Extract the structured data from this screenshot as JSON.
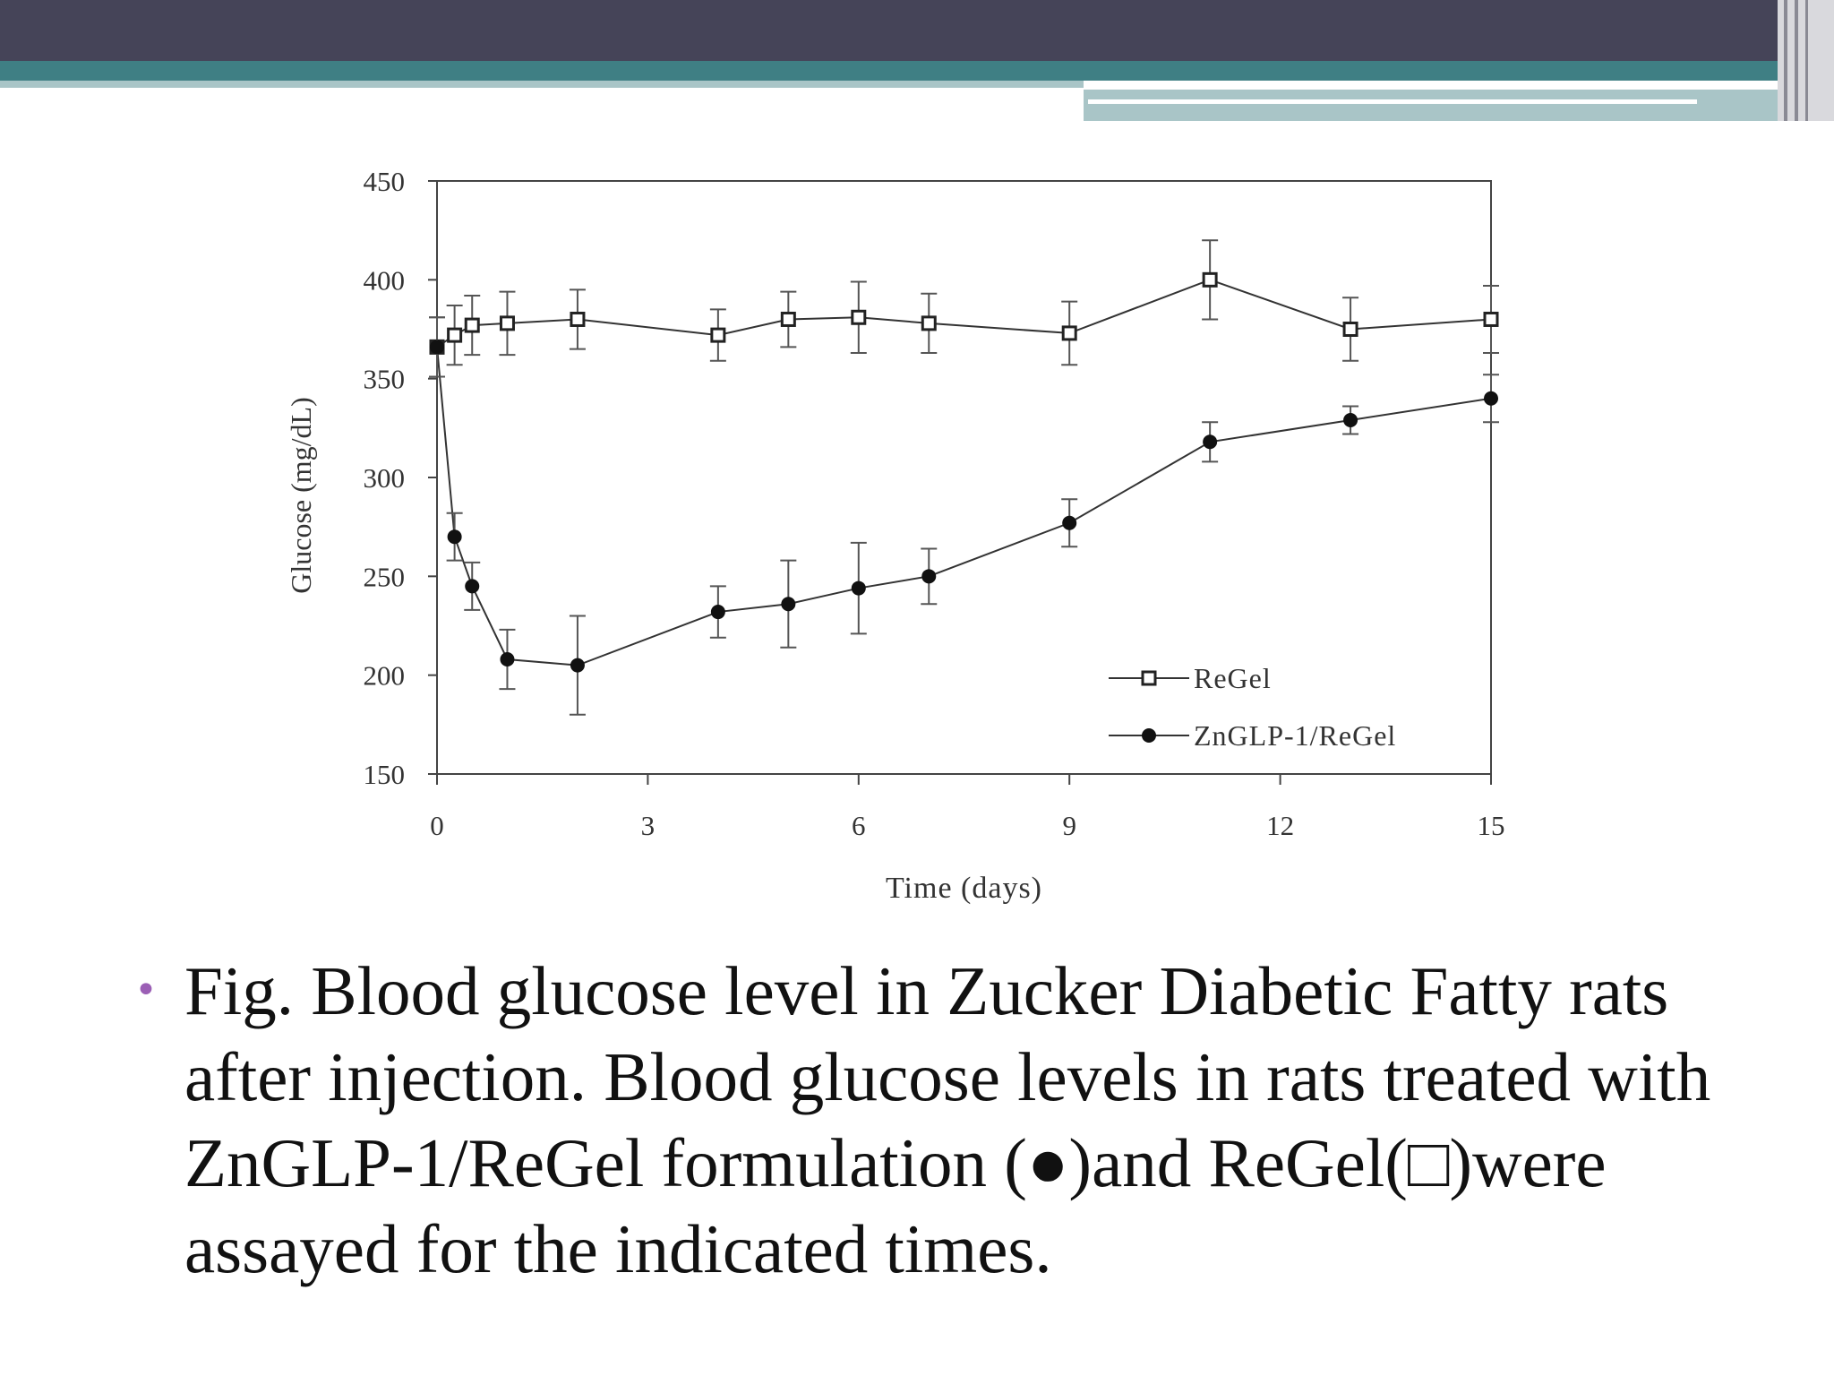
{
  "caption": {
    "text": "Fig. Blood glucose level in Zucker Diabetic Fatty rats after injection. Blood glucose levels in rats treated with ZnGLP-1/ReGel formulation (●)and ReGel(□)were assayed for the indicated times."
  },
  "colors": {
    "top_bar": "#454458",
    "teal_band": "#3f7f84",
    "light_band": "#a9c5c7",
    "bullet": "#9b5fb5"
  },
  "chart_data": {
    "type": "line",
    "title": "",
    "xlabel": "Time (days)",
    "ylabel": "Glucose (mg/dL)",
    "xlim": [
      0,
      15
    ],
    "ylim": [
      150,
      450
    ],
    "xticks": [
      0,
      3,
      6,
      9,
      12,
      15
    ],
    "yticks": [
      150,
      200,
      250,
      300,
      350,
      400,
      450
    ],
    "legend_position": "bottom-right",
    "grid": false,
    "series": [
      {
        "name": "ReGel",
        "marker": "open-square",
        "points": [
          {
            "x": 0,
            "y": 366,
            "err": 15
          },
          {
            "x": 0.25,
            "y": 372,
            "err": 15
          },
          {
            "x": 0.5,
            "y": 377,
            "err": 15
          },
          {
            "x": 1,
            "y": 378,
            "err": 16
          },
          {
            "x": 2,
            "y": 380,
            "err": 15
          },
          {
            "x": 4,
            "y": 372,
            "err": 13
          },
          {
            "x": 5,
            "y": 380,
            "err": 14
          },
          {
            "x": 6,
            "y": 381,
            "err": 18
          },
          {
            "x": 7,
            "y": 378,
            "err": 15
          },
          {
            "x": 9,
            "y": 373,
            "err": 16
          },
          {
            "x": 11,
            "y": 400,
            "err": 20
          },
          {
            "x": 13,
            "y": 375,
            "err": 16
          },
          {
            "x": 15,
            "y": 380,
            "err": 17
          }
        ]
      },
      {
        "name": "ZnGLP-1/ReGel",
        "marker": "filled-circle",
        "points": [
          {
            "x": 0,
            "y": 366,
            "err": 15
          },
          {
            "x": 0.25,
            "y": 270,
            "err": 12
          },
          {
            "x": 0.5,
            "y": 245,
            "err": 12
          },
          {
            "x": 1,
            "y": 208,
            "err": 15
          },
          {
            "x": 2,
            "y": 205,
            "err": 25
          },
          {
            "x": 4,
            "y": 232,
            "err": 13
          },
          {
            "x": 5,
            "y": 236,
            "err": 22
          },
          {
            "x": 6,
            "y": 244,
            "err": 23
          },
          {
            "x": 7,
            "y": 250,
            "err": 14
          },
          {
            "x": 9,
            "y": 277,
            "err": 12
          },
          {
            "x": 11,
            "y": 318,
            "err": 10
          },
          {
            "x": 13,
            "y": 329,
            "err": 7
          },
          {
            "x": 15,
            "y": 340,
            "err": 12
          }
        ]
      }
    ]
  }
}
